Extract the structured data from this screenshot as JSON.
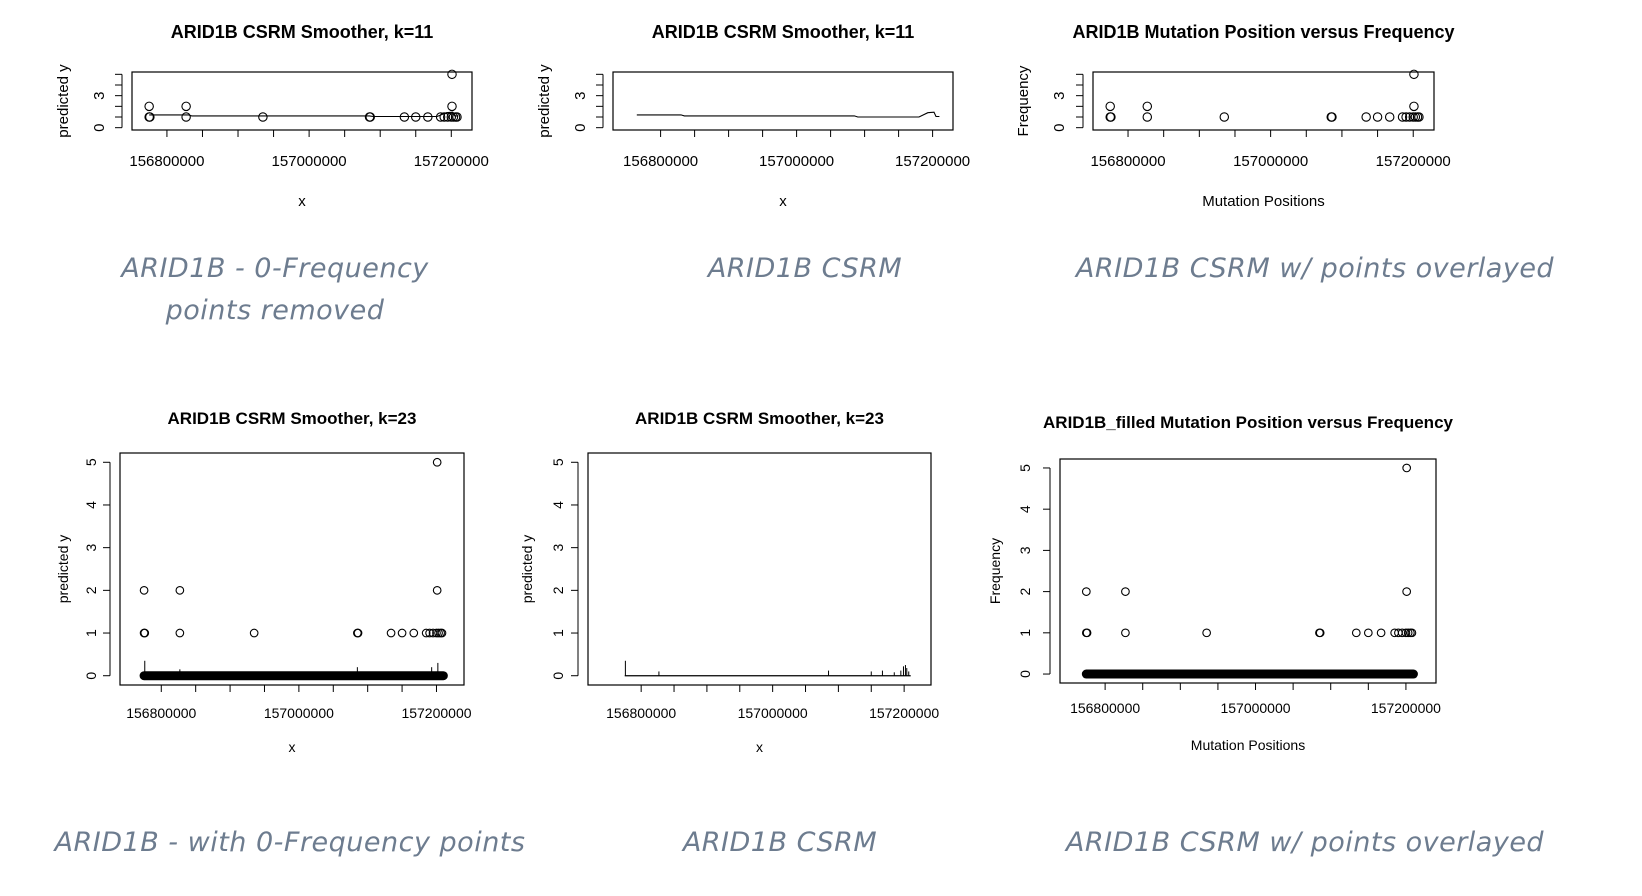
{
  "captions": {
    "p1": "ARID1B - 0-Frequency points removed",
    "p2": "ARID1B CSRM",
    "p3": "ARID1B CSRM w/ points overlayed",
    "p4": "ARID1B - with 0-Frequency points",
    "p5": "ARID1B CSRM",
    "p6": "ARID1B CSRM w/ points overlayed"
  },
  "colors": {
    "caption": "#6d7c8f",
    "plot": "#000000"
  },
  "chart_data": [
    {
      "type": "scatter",
      "title": "ARID1B CSRM Smoother, k=11",
      "xlabel": "x",
      "ylabel": "predicted y",
      "xlim": [
        156770000,
        157210000
      ],
      "ylim": [
        0,
        5
      ],
      "xticks": [
        "156800000",
        "157000000",
        "157200000"
      ],
      "yticks": [
        "0",
        "3"
      ],
      "points": [
        [
          156775000,
          2
        ],
        [
          156775000,
          1
        ],
        [
          156776000,
          1
        ],
        [
          156827000,
          2
        ],
        [
          156827000,
          1
        ],
        [
          156935000,
          1
        ],
        [
          157085000,
          1
        ],
        [
          157086000,
          1
        ],
        [
          157134000,
          1
        ],
        [
          157150000,
          1
        ],
        [
          157167000,
          1
        ],
        [
          157185000,
          1
        ],
        [
          157190000,
          1
        ],
        [
          157195000,
          1
        ],
        [
          157200000,
          1
        ],
        [
          157201000,
          5
        ],
        [
          157201000,
          2
        ],
        [
          157203000,
          1
        ],
        [
          157206000,
          1
        ],
        [
          157208000,
          1
        ]
      ],
      "line": [
        [
          156775000,
          1.2
        ],
        [
          156830000,
          1.2
        ],
        [
          156835000,
          1.1
        ],
        [
          157085000,
          1.1
        ],
        [
          157090000,
          1.05
        ],
        [
          157180000,
          1.05
        ],
        [
          157193000,
          1.4
        ],
        [
          157202000,
          1.45
        ],
        [
          157205000,
          1.1
        ],
        [
          157210000,
          1.1
        ]
      ]
    },
    {
      "type": "line",
      "title": "ARID1B CSRM Smoother, k=11",
      "xlabel": "x",
      "ylabel": "predicted y",
      "xlim": [
        156750000,
        157210000
      ],
      "ylim": [
        0,
        5
      ],
      "xticks": [
        "156800000",
        "157000000",
        "157200000"
      ],
      "yticks": [
        "0",
        "3"
      ],
      "line": [
        [
          156765000,
          1.2
        ],
        [
          156830000,
          1.2
        ],
        [
          156835000,
          1.1
        ],
        [
          157085000,
          1.1
        ],
        [
          157090000,
          1.0
        ],
        [
          157180000,
          1.0
        ],
        [
          157193000,
          1.4
        ],
        [
          157202000,
          1.45
        ],
        [
          157205000,
          1.05
        ],
        [
          157210000,
          1.05
        ]
      ]
    },
    {
      "type": "scatter",
      "title": "ARID1B Mutation Position versus Frequency",
      "xlabel": "Mutation Positions",
      "ylabel": "Frequency",
      "xlim": [
        156770000,
        157210000
      ],
      "ylim": [
        0,
        5
      ],
      "xticks": [
        "156800000",
        "157000000",
        "157200000"
      ],
      "yticks": [
        "0",
        "3"
      ],
      "points": [
        [
          156775000,
          2
        ],
        [
          156775000,
          1
        ],
        [
          156776000,
          1
        ],
        [
          156827000,
          2
        ],
        [
          156827000,
          1
        ],
        [
          156935000,
          1
        ],
        [
          157085000,
          1
        ],
        [
          157086000,
          1
        ],
        [
          157134000,
          1
        ],
        [
          157150000,
          1
        ],
        [
          157167000,
          1
        ],
        [
          157185000,
          1
        ],
        [
          157190000,
          1
        ],
        [
          157195000,
          1
        ],
        [
          157200000,
          1
        ],
        [
          157201000,
          5
        ],
        [
          157201000,
          2
        ],
        [
          157203000,
          1
        ],
        [
          157206000,
          1
        ],
        [
          157208000,
          1
        ]
      ]
    },
    {
      "type": "scatter",
      "title": "ARID1B CSRM Smoother, k=23",
      "xlabel": "x",
      "ylabel": "predicted y",
      "xlim": [
        156760000,
        157220000
      ],
      "ylim": [
        0,
        5
      ],
      "xticks": [
        "156800000",
        "157000000",
        "157200000"
      ],
      "yticks": [
        "0",
        "1",
        "2",
        "3",
        "4",
        "5"
      ],
      "points": [
        [
          156775000,
          2
        ],
        [
          156775000,
          1
        ],
        [
          156776000,
          1
        ],
        [
          156827000,
          2
        ],
        [
          156827000,
          1
        ],
        [
          156935000,
          1
        ],
        [
          157085000,
          1
        ],
        [
          157086000,
          1
        ],
        [
          157134000,
          1
        ],
        [
          157150000,
          1
        ],
        [
          157167000,
          1
        ],
        [
          157185000,
          1
        ],
        [
          157190000,
          1
        ],
        [
          157195000,
          1
        ],
        [
          157200000,
          1
        ],
        [
          157201000,
          5
        ],
        [
          157201000,
          2
        ],
        [
          157203000,
          1
        ],
        [
          157206000,
          1
        ],
        [
          157208000,
          1
        ]
      ],
      "zero_band": [
        156775000,
        157210000
      ],
      "spikes": [
        [
          156776000,
          0.35
        ],
        [
          156827000,
          0.15
        ],
        [
          157085000,
          0.2
        ],
        [
          157193000,
          0.2
        ],
        [
          157202000,
          0.3
        ]
      ]
    },
    {
      "type": "line",
      "title": "ARID1B CSRM Smoother, k=23",
      "xlabel": "x",
      "ylabel": "predicted y",
      "xlim": [
        156740000,
        157220000
      ],
      "ylim": [
        0,
        5
      ],
      "xticks": [
        "156800000",
        "157000000",
        "157200000"
      ],
      "yticks": [
        "0",
        "1",
        "2",
        "3",
        "4",
        "5"
      ],
      "baseline": [
        156775000,
        157210000
      ],
      "spikes": [
        [
          156776000,
          0.35
        ],
        [
          156827000,
          0.1
        ],
        [
          157085000,
          0.12
        ],
        [
          157150000,
          0.1
        ],
        [
          157167000,
          0.12
        ],
        [
          157185000,
          0.08
        ],
        [
          157195000,
          0.12
        ],
        [
          157199000,
          0.22
        ],
        [
          157202000,
          0.25
        ],
        [
          157204000,
          0.18
        ],
        [
          157207000,
          0.1
        ]
      ]
    },
    {
      "type": "scatter",
      "title": "ARID1B_filled Mutation Position versus Frequency",
      "xlabel": "Mutation Positions",
      "ylabel": "Frequency",
      "xlim": [
        156760000,
        157220000
      ],
      "ylim": [
        0,
        5
      ],
      "xticks": [
        "156800000",
        "157000000",
        "157200000"
      ],
      "yticks": [
        "0",
        "1",
        "2",
        "3",
        "4",
        "5"
      ],
      "points": [
        [
          156775000,
          2
        ],
        [
          156775000,
          1
        ],
        [
          156776000,
          1
        ],
        [
          156827000,
          2
        ],
        [
          156827000,
          1
        ],
        [
          156935000,
          1
        ],
        [
          157085000,
          1
        ],
        [
          157086000,
          1
        ],
        [
          157134000,
          1
        ],
        [
          157150000,
          1
        ],
        [
          157167000,
          1
        ],
        [
          157185000,
          1
        ],
        [
          157190000,
          1
        ],
        [
          157195000,
          1
        ],
        [
          157200000,
          1
        ],
        [
          157201000,
          5
        ],
        [
          157201000,
          2
        ],
        [
          157203000,
          1
        ],
        [
          157206000,
          1
        ],
        [
          157208000,
          1
        ]
      ],
      "zero_band": [
        156775000,
        157210000
      ]
    }
  ]
}
